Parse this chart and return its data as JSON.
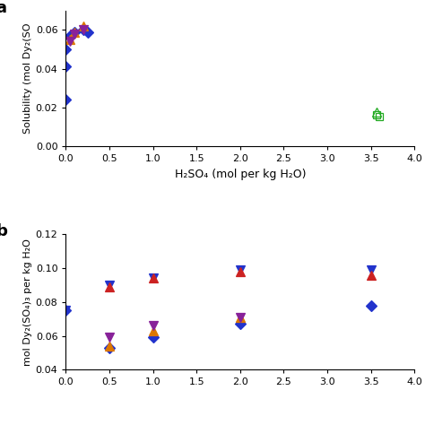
{
  "panel_a": {
    "xlabel": "H₂SO₄ (mol per kg H₂O)",
    "ylabel": "Solubility (mol Dy₂(SO",
    "xlim": [
      0,
      4.0
    ],
    "ylim": [
      0.0,
      0.07
    ],
    "yticks": [
      0.0,
      0.02,
      0.04,
      0.06
    ],
    "xticks": [
      0.0,
      0.5,
      1.0,
      1.5,
      2.0,
      2.5,
      3.0,
      3.5,
      4.0
    ],
    "series": [
      {
        "x": [
          0.0,
          0.0,
          0.0,
          0.05,
          0.1,
          0.2,
          0.25
        ],
        "y": [
          0.024,
          0.041,
          0.05,
          0.057,
          0.059,
          0.06,
          0.059
        ],
        "color": "#2233cc",
        "marker": "D",
        "filled": true,
        "size": 6
      },
      {
        "x": [
          0.05,
          0.1,
          0.2
        ],
        "y": [
          0.055,
          0.059,
          0.062
        ],
        "color": "#dd7700",
        "marker": "^",
        "filled": true,
        "size": 7
      },
      {
        "x": [
          0.05,
          0.1,
          0.2
        ],
        "y": [
          0.054,
          0.058,
          0.06
        ],
        "color": "#882299",
        "marker": "v",
        "filled": true,
        "size": 7
      },
      {
        "x": [
          3.57
        ],
        "y": [
          0.0175
        ],
        "color": "#22aa22",
        "marker": "^",
        "filled": false,
        "size": 7
      },
      {
        "x": [
          3.57
        ],
        "y": [
          0.016
        ],
        "color": "#22aa22",
        "marker": "s",
        "filled": false,
        "size": 6
      },
      {
        "x": [
          3.6
        ],
        "y": [
          0.0155
        ],
        "color": "#22aa22",
        "marker": "s",
        "filled": false,
        "size": 6
      }
    ]
  },
  "panel_b": {
    "ylabel": "mol Dy₂(SO₄)₃ per kg H₂O",
    "xlim": [
      0,
      4.0
    ],
    "ylim": [
      0.04,
      0.12
    ],
    "yticks": [
      0.04,
      0.06,
      0.08,
      0.1,
      0.12
    ],
    "series": [
      {
        "x": [
          0.0,
          0.5,
          1.0,
          2.0,
          3.5
        ],
        "y": [
          0.075,
          0.09,
          0.094,
          0.099,
          0.099
        ],
        "color": "#2233cc",
        "marker": "v",
        "filled": true,
        "size": 7
      },
      {
        "x": [
          0.5,
          1.0,
          2.0,
          3.5
        ],
        "y": [
          0.089,
          0.094,
          0.098,
          0.096
        ],
        "color": "#cc2222",
        "marker": "^",
        "filled": true,
        "size": 7
      },
      {
        "x": [
          0.0,
          0.5,
          1.0,
          2.0,
          3.5
        ],
        "y": [
          0.075,
          0.053,
          0.059,
          0.067,
          0.078
        ],
        "color": "#2233cc",
        "marker": "D",
        "filled": true,
        "size": 6
      },
      {
        "x": [
          0.5,
          1.0,
          2.0
        ],
        "y": [
          0.054,
          0.063,
          0.071
        ],
        "color": "#dd7700",
        "marker": "^",
        "filled": true,
        "size": 7
      },
      {
        "x": [
          0.5,
          1.0,
          2.0
        ],
        "y": [
          0.059,
          0.066,
          0.071
        ],
        "color": "#882299",
        "marker": "v",
        "filled": true,
        "size": 7
      }
    ]
  }
}
